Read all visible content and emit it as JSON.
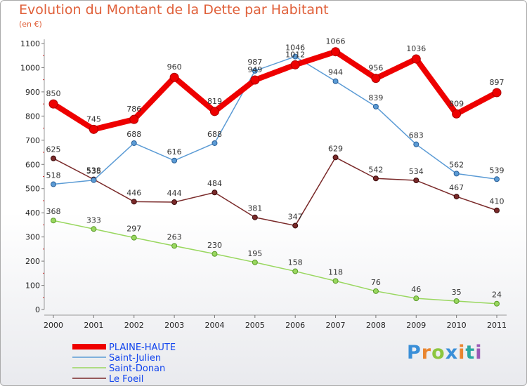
{
  "header": {
    "title": "Evolution du Montant de la Dette par Habitant",
    "subtitle": "(en €)"
  },
  "logo": {
    "letters": [
      "P",
      "r",
      "o",
      "x",
      "i",
      "t",
      "i"
    ],
    "colors": [
      "#3a8fd8",
      "#e9852f",
      "#8cc63f",
      "#3a8fd8",
      "#e9852f",
      "#2aa7a0",
      "#9b59b6"
    ]
  },
  "chart_data": {
    "type": "line",
    "title": "Evolution du Montant de la Dette par Habitant",
    "subtitle": "(en €)",
    "xlabel": "",
    "ylabel": "",
    "x": [
      "2000",
      "2001",
      "2002",
      "2003",
      "2004",
      "2005",
      "2006",
      "2007",
      "2008",
      "2009",
      "2010",
      "2011"
    ],
    "ylim": [
      0,
      1100
    ],
    "yticks": [
      "0",
      "100",
      "200",
      "300",
      "400",
      "500",
      "600",
      "700",
      "800",
      "900",
      "1000",
      "1100"
    ],
    "grid": false,
    "legend_position": "bottom-left",
    "series": [
      {
        "name": "PLAINE-HAUTE",
        "color": "#ee0000",
        "values": [
          850,
          745,
          786,
          960,
          819,
          949,
          1012,
          1066,
          956,
          1036,
          809,
          897
        ]
      },
      {
        "name": "Saint-Julien",
        "color": "#5b9bd5",
        "values": [
          518,
          535,
          688,
          616,
          688,
          987,
          1046,
          944,
          839,
          683,
          562,
          539
        ]
      },
      {
        "name": "Saint-Donan",
        "color": "#99d75f",
        "values": [
          368,
          333,
          297,
          263,
          230,
          195,
          158,
          118,
          76,
          46,
          35,
          24
        ]
      },
      {
        "name": "Le Foeil",
        "color": "#7a2a2a",
        "values": [
          625,
          538,
          446,
          444,
          484,
          381,
          347,
          629,
          542,
          534,
          467,
          410
        ]
      }
    ]
  }
}
